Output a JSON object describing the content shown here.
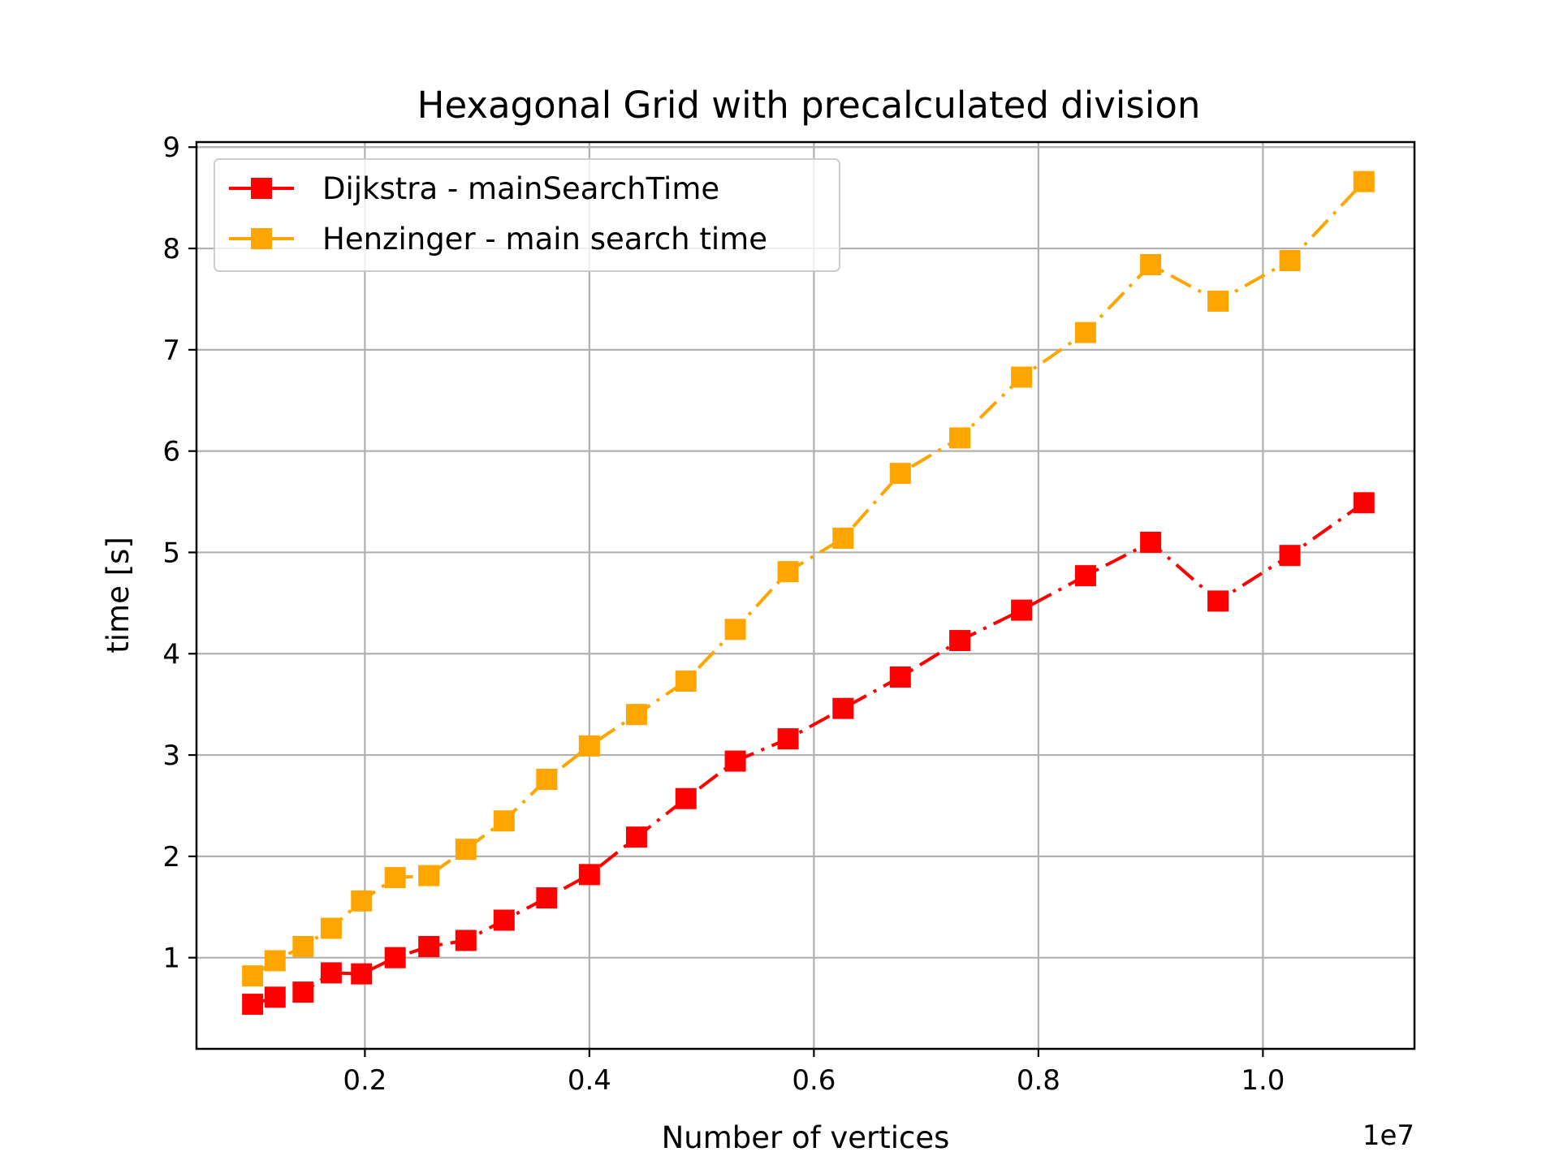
{
  "chart_data": {
    "type": "line",
    "title": "Hexagonal Grid with precalculated division",
    "xlabel": "Number of vertices",
    "ylabel": "time [s]",
    "x_offset_label": "1e7",
    "xlim": [
      0.05,
      1.135
    ],
    "ylim": [
      0.1,
      9.05
    ],
    "x_ticks": [
      0.2,
      0.4,
      0.6,
      0.8,
      1.0
    ],
    "x_tick_labels": [
      "0.2",
      "0.4",
      "0.6",
      "0.8",
      "1.0"
    ],
    "y_ticks": [
      1,
      2,
      3,
      4,
      5,
      6,
      7,
      8,
      9
    ],
    "y_tick_labels": [
      "1",
      "2",
      "3",
      "4",
      "5",
      "6",
      "7",
      "8",
      "9"
    ],
    "grid": true,
    "legend_position": "upper-left",
    "x": [
      0.1,
      0.12,
      0.145,
      0.17,
      0.197,
      0.227,
      0.257,
      0.29,
      0.324,
      0.362,
      0.4,
      0.442,
      0.486,
      0.53,
      0.577,
      0.626,
      0.677,
      0.73,
      0.785,
      0.842,
      0.9,
      0.96,
      1.024,
      1.09
    ],
    "series": [
      {
        "name": "Dijkstra - mainSearchTime",
        "color": "#ff0000",
        "values": [
          0.54,
          0.61,
          0.66,
          0.85,
          0.84,
          1.0,
          1.11,
          1.17,
          1.37,
          1.59,
          1.82,
          2.19,
          2.57,
          2.94,
          3.16,
          3.46,
          3.77,
          4.13,
          4.43,
          4.77,
          5.1,
          4.52,
          4.97,
          5.49
        ]
      },
      {
        "name": "Henzinger - main search time",
        "color": "#ffa500",
        "values": [
          0.82,
          0.97,
          1.11,
          1.29,
          1.56,
          1.79,
          1.81,
          2.07,
          2.35,
          2.76,
          3.09,
          3.4,
          3.73,
          4.24,
          4.81,
          5.14,
          5.78,
          6.13,
          6.73,
          7.17,
          7.84,
          7.48,
          7.88,
          8.66
        ]
      }
    ]
  }
}
